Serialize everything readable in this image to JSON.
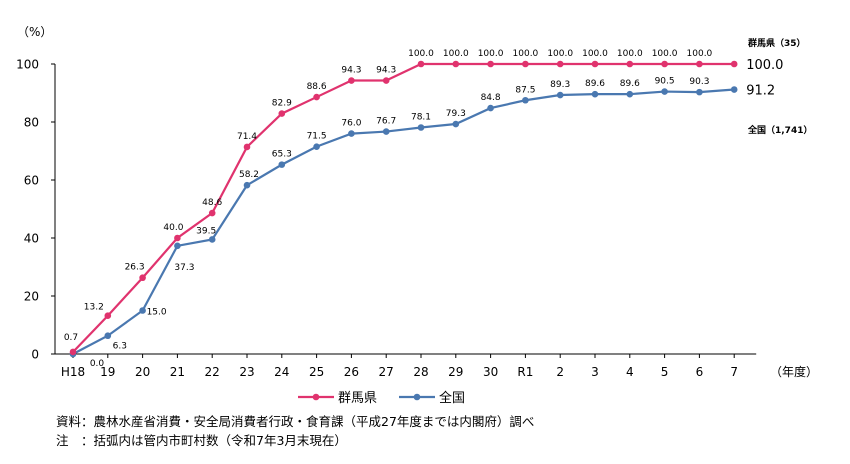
{
  "chart_data": {
    "type": "line",
    "unit_label": "（%）",
    "x_unit_label": "（年度）",
    "categories": [
      "H18",
      "19",
      "20",
      "21",
      "22",
      "23",
      "24",
      "25",
      "26",
      "27",
      "28",
      "29",
      "30",
      "R1",
      "2",
      "3",
      "4",
      "5",
      "6",
      "7"
    ],
    "ylim": [
      0,
      100
    ],
    "yticks": [
      0,
      20,
      40,
      60,
      80,
      100
    ],
    "grid": false,
    "legend_position": "bottom-center",
    "series": [
      {
        "name": "群馬県",
        "color": "#e0336e",
        "values": [
          0.7,
          13.2,
          26.3,
          40.0,
          48.6,
          71.4,
          82.9,
          88.6,
          94.3,
          94.3,
          100.0,
          100.0,
          100.0,
          100.0,
          100.0,
          100.0,
          100.0,
          100.0,
          100.0,
          100.0
        ],
        "labels": [
          "0.7",
          "13.2",
          "26.3",
          "40.0",
          "48.6",
          "71.4",
          "82.9",
          "88.6",
          "94.3",
          "94.3",
          "100.0",
          "100.0",
          "100.0",
          "100.0",
          "100.0",
          "100.0",
          "100.0",
          "100.0",
          "100.0",
          "100.0"
        ],
        "end_name_label": "群馬県（35）"
      },
      {
        "name": "全国",
        "color": "#4a78b0",
        "values": [
          0.0,
          6.3,
          15.0,
          37.3,
          39.5,
          58.2,
          65.3,
          71.5,
          76.0,
          76.7,
          78.1,
          79.3,
          84.8,
          87.5,
          89.3,
          89.6,
          89.6,
          90.5,
          90.3,
          91.2
        ],
        "labels": [
          "0.0",
          "6.3",
          "15.0",
          "37.3",
          "39.5",
          "58.2",
          "65.3",
          "71.5",
          "76.0",
          "76.7",
          "78.1",
          "79.3",
          "84.8",
          "87.5",
          "89.3",
          "89.6",
          "89.6",
          "90.5",
          "90.3",
          "91.2"
        ],
        "end_name_label": "全国（1,741）"
      }
    ]
  },
  "notes": {
    "source": "資料：農林水産省消費・安全局消費者行政・食育課（平成27年度までは内閣府）調べ",
    "note": "注　：括弧内は管内市町村数（令和7年3月末現在）"
  }
}
